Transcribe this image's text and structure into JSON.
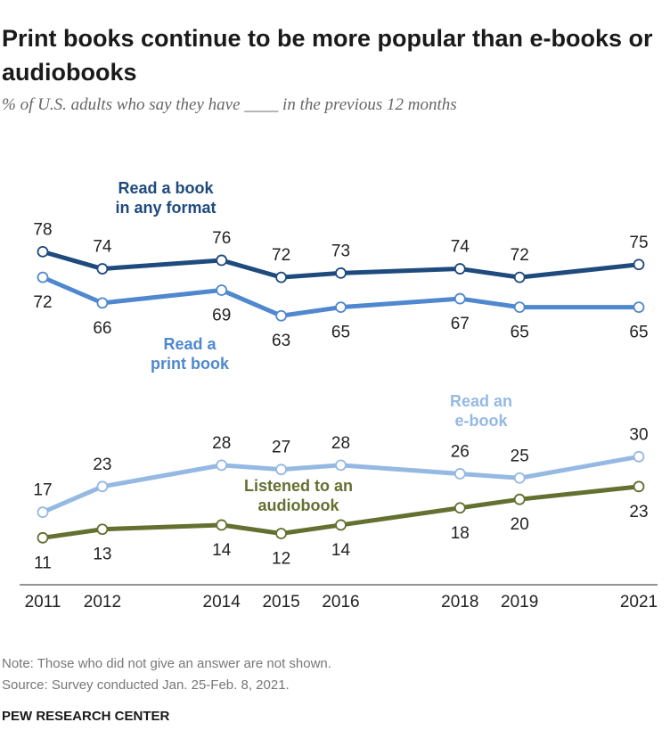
{
  "header": {
    "title": "Print books continue to be more popular than e-books or audiobooks",
    "subtitle": "% of U.S. adults who say they have ____ in the previous 12 months"
  },
  "footer": {
    "note": "Note: Those who did not give an answer are not shown.",
    "source": "Source: Survey conducted Jan. 25-Feb. 8, 2021.",
    "brand": "PEW RESEARCH CENTER"
  },
  "chart_data": {
    "type": "line",
    "x": [
      2011,
      2012,
      2014,
      2015,
      2016,
      2018,
      2019,
      2021
    ],
    "x_tick_labels": [
      "2011",
      "2012",
      "2014",
      "2015",
      "2016",
      "2018",
      "2019",
      "2021"
    ],
    "ylim": [
      0,
      100
    ],
    "grid": false,
    "legend": "none; series labels placed directly on chart",
    "series": [
      {
        "name": "Read a book in any format",
        "label_lines": [
          "Read a book",
          "in any format"
        ],
        "color": "#1e4a7d",
        "values": [
          78,
          74,
          76,
          72,
          73,
          74,
          72,
          75
        ],
        "label_pos": [
          "above",
          "above",
          "above",
          "above",
          "above",
          "above",
          "above",
          "above"
        ]
      },
      {
        "name": "Read a print book",
        "label_lines": [
          "Read a",
          "print book"
        ],
        "color": "#4f88cf",
        "values": [
          72,
          66,
          69,
          63,
          65,
          67,
          65,
          65
        ],
        "label_pos": [
          "below",
          "below",
          "below",
          "below",
          "below",
          "below",
          "below",
          "below"
        ]
      },
      {
        "name": "Read an e-book",
        "label_lines": [
          "Read an",
          "e-book"
        ],
        "color": "#95b9e3",
        "values": [
          17,
          23,
          28,
          27,
          28,
          26,
          25,
          30
        ],
        "label_pos": [
          "above",
          "above",
          "above",
          "above",
          "above",
          "above",
          "above",
          "above"
        ]
      },
      {
        "name": "Listened to an audiobook",
        "label_lines": [
          "Listened to an",
          "audiobook"
        ],
        "color": "#637030",
        "values": [
          11,
          13,
          14,
          12,
          14,
          18,
          20,
          23
        ],
        "label_pos": [
          "below",
          "below",
          "below",
          "below",
          "below",
          "below",
          "below",
          "below"
        ]
      }
    ]
  }
}
